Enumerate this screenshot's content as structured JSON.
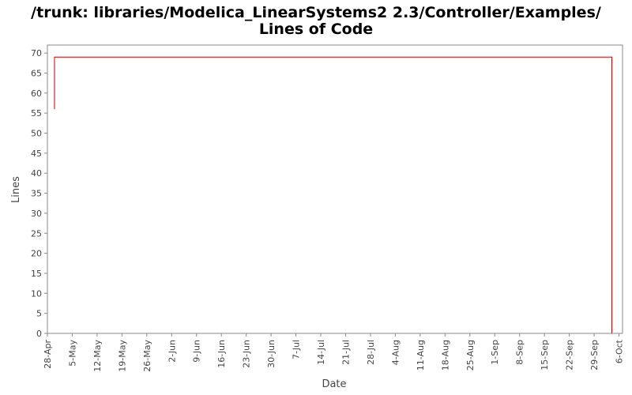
{
  "chart_data": {
    "type": "line",
    "title": [
      "/trunk: libraries/Modelica_LinearSystems2 2.3/Controller/Examples/",
      "Lines of Code"
    ],
    "x_label": "Date",
    "y_label": "Lines",
    "x": [
      "30-Apr",
      "30-Apr",
      "4-Oct",
      "4-Oct"
    ],
    "series": [
      {
        "color": "#cc0000",
        "values": [
          56,
          69,
          69,
          0
        ]
      }
    ],
    "xlim": [
      "28-Apr",
      "7-Oct"
    ],
    "xticks": [
      "28-Apr",
      "5-May",
      "12-May",
      "19-May",
      "26-May",
      "2-Jun",
      "9-Jun",
      "16-Jun",
      "23-Jun",
      "30-Jun",
      "7-Jul",
      "14-Jul",
      "21-Jul",
      "28-Jul",
      "4-Aug",
      "11-Aug",
      "18-Aug",
      "25-Aug",
      "1-Sep",
      "8-Sep",
      "15-Sep",
      "22-Sep",
      "29-Sep",
      "6-Oct"
    ],
    "ylim": [
      0,
      72
    ],
    "yticks": [
      0,
      5,
      10,
      15,
      20,
      25,
      30,
      35,
      40,
      45,
      50,
      55,
      60,
      65,
      70
    ],
    "grid": false
  }
}
